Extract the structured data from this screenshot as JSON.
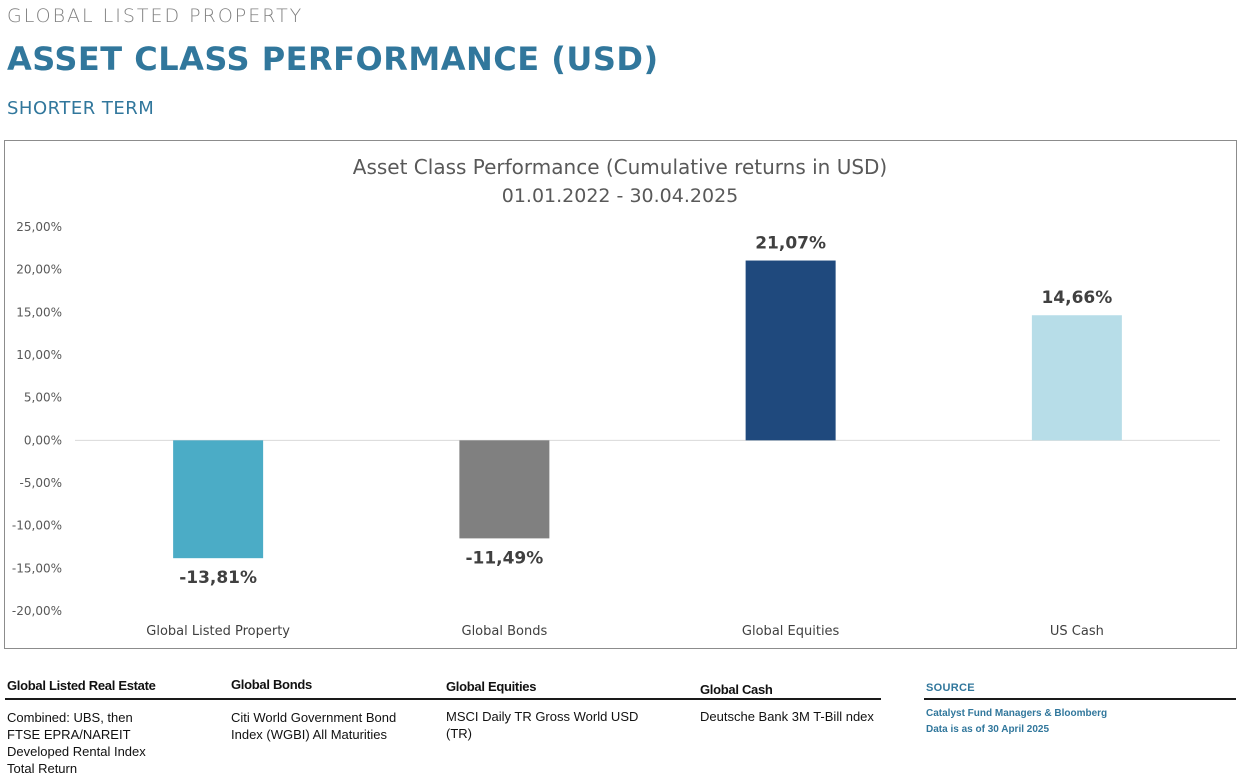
{
  "header": {
    "eyebrow": "GLOBAL LISTED PROPERTY",
    "title": "ASSET CLASS PERFORMANCE (USD)",
    "subtitle": "SHORTER TERM"
  },
  "chart_data": {
    "type": "bar",
    "title": "Asset Class Performance (Cumulative returns in USD)",
    "subtitle": "01.01.2022 - 30.04.2025",
    "categories": [
      "Global Listed Property",
      "Global Bonds",
      "Global Equities",
      "US Cash"
    ],
    "values": [
      -13.81,
      -11.49,
      21.07,
      14.66
    ],
    "data_labels": [
      "-13,81%",
      "-11,49%",
      "21,07%",
      "14,66%"
    ],
    "colors": [
      "#4bacc6",
      "#808080",
      "#1f497d",
      "#b7dde8"
    ],
    "yticks": [
      "25,00%",
      "20,00%",
      "15,00%",
      "10,00%",
      "5,00%",
      "0,00%",
      "-5,00%",
      "-10,00%",
      "-15,00%",
      "-20,00%"
    ],
    "ylim": [
      -20,
      25
    ],
    "grid": false,
    "legend": "none"
  },
  "footer": {
    "columns": [
      {
        "heading": "Global Listed Real Estate",
        "body": "Combined: UBS, then\nFTSE  EPRA/NAREIT\nDeveloped Rental Index\nTotal Return"
      },
      {
        "heading": "Global Bonds",
        "body": "Citi World Government Bond\nIndex (WGBI) All Maturities"
      },
      {
        "heading": "Global Equities",
        "body": "MSCI Daily TR Gross World USD\n(TR)"
      },
      {
        "heading": "Global Cash",
        "body": "Deutsche Bank 3M T-Bill ndex"
      }
    ],
    "source": {
      "heading": "SOURCE",
      "body": "Catalyst Fund Managers & Bloomberg\nData is as of 30 April 2025"
    }
  }
}
